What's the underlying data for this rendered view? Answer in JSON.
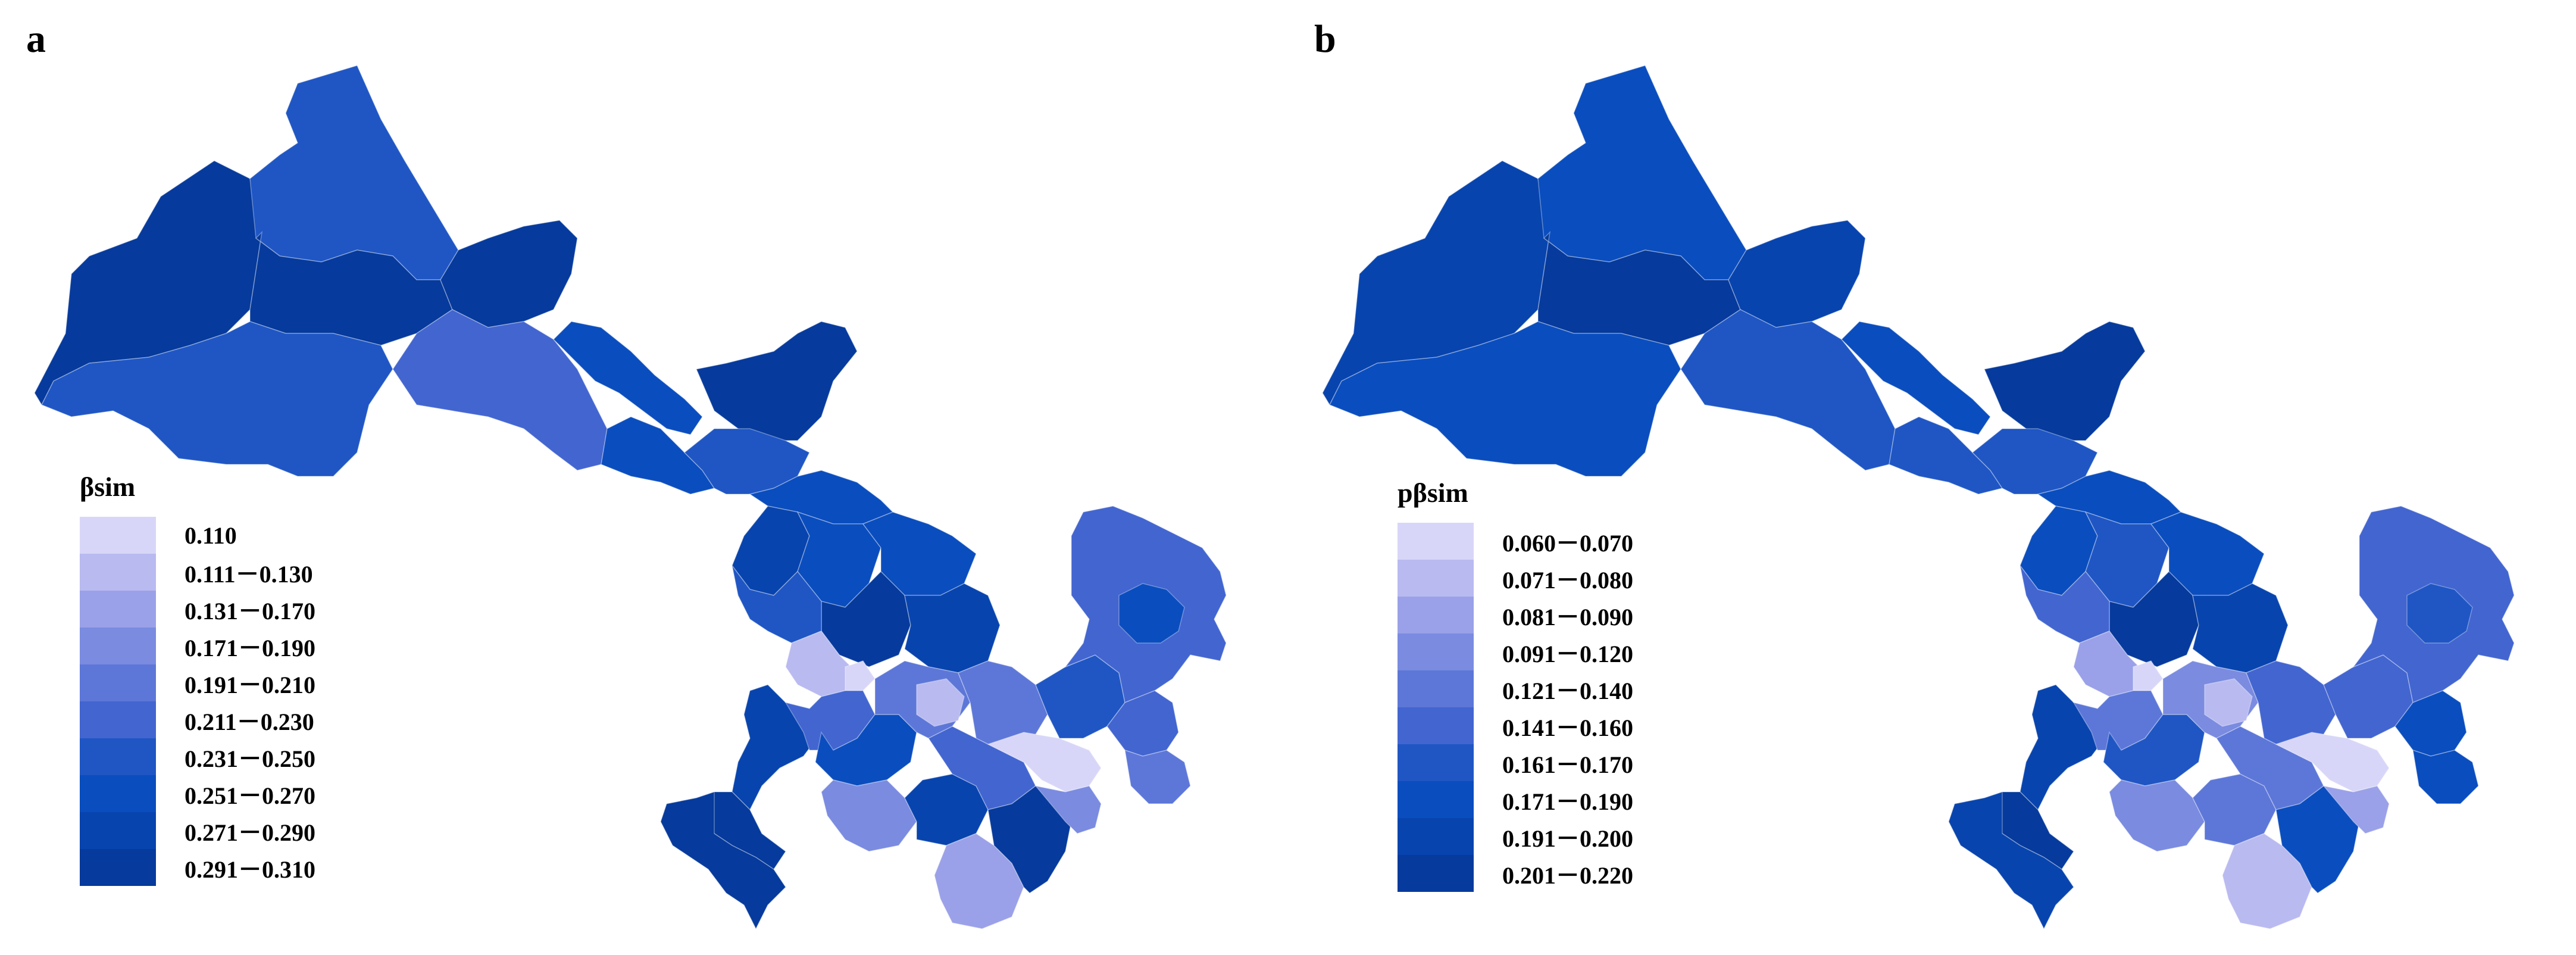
{
  "panels": [
    {
      "label": "a",
      "legend": {
        "title": "βsim",
        "items": [
          {
            "label": "0.110",
            "color": "#d8d6f8"
          },
          {
            "label": "0.111－0.130",
            "color": "#b9baf0"
          },
          {
            "label": "0.131－0.170",
            "color": "#9aa1e8"
          },
          {
            "label": "0.171－0.190",
            "color": "#7a8be0"
          },
          {
            "label": "0.191－0.210",
            "color": "#5d77d8"
          },
          {
            "label": "0.211－0.230",
            "color": "#4265d0"
          },
          {
            "label": "0.231－0.250",
            "color": "#1f56c4"
          },
          {
            "label": "0.251－0.270",
            "color": "#0a4dbe"
          },
          {
            "label": "0.271－0.290",
            "color": "#0844ae"
          },
          {
            "label": "0.291－0.310",
            "color": "#063a9c"
          }
        ]
      }
    },
    {
      "label": "b",
      "legend": {
        "title": "pβsim",
        "items": [
          {
            "label": "0.060－0.070",
            "color": "#d8d6f8"
          },
          {
            "label": "0.071－0.080",
            "color": "#b9baf0"
          },
          {
            "label": "0.081－0.090",
            "color": "#9aa1e8"
          },
          {
            "label": "0.091－0.120",
            "color": "#7a8be0"
          },
          {
            "label": "0.121－0.140",
            "color": "#5d77d8"
          },
          {
            "label": "0.141－0.160",
            "color": "#4265d0"
          },
          {
            "label": "0.161－0.170",
            "color": "#1f56c4"
          },
          {
            "label": "0.171－0.190",
            "color": "#0a4dbe"
          },
          {
            "label": "0.191－0.200",
            "color": "#0844ae"
          },
          {
            "label": "0.201－0.220",
            "color": "#063a9c"
          }
        ]
      }
    }
  ]
}
